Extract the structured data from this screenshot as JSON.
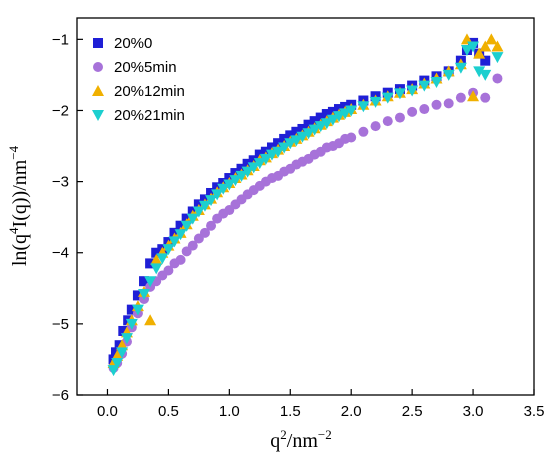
{
  "chart_data": {
    "type": "scatter",
    "xlim": [
      -0.25,
      3.5
    ],
    "ylim": [
      -6,
      -0.7
    ],
    "x_ticks": [
      0.0,
      0.5,
      1.0,
      1.5,
      2.0,
      2.5,
      3.0,
      3.5
    ],
    "x_tick_labels": [
      "0.0",
      "0.5",
      "1.0",
      "1.5",
      "2.0",
      "2.5",
      "3.0",
      "3.5"
    ],
    "y_ticks": [
      -6,
      -5,
      -4,
      -3,
      -2,
      -1
    ],
    "y_tick_labels": [
      "−6",
      "−5",
      "−4",
      "−3",
      "−2",
      "−1"
    ],
    "xlabel": {
      "base": "q",
      "sup1": "2",
      "mid": "/nm",
      "sup2": "−2"
    },
    "ylabel": {
      "pre": "ln(q",
      "sup1": "4",
      "mid": "I(q))/nm",
      "sup2": "−4"
    },
    "legend_position": "top-left",
    "grid": false,
    "series": [
      {
        "name": "20%0",
        "marker": "square",
        "color": "#1f1fd6",
        "points": [
          [
            0.05,
            -5.5
          ],
          [
            0.07,
            -5.4
          ],
          [
            0.1,
            -5.3
          ],
          [
            0.13,
            -5.1
          ],
          [
            0.17,
            -4.95
          ],
          [
            0.2,
            -4.8
          ],
          [
            0.25,
            -4.6
          ],
          [
            0.3,
            -4.4
          ],
          [
            0.35,
            -4.15
          ],
          [
            0.4,
            -4.0
          ],
          [
            0.45,
            -3.95
          ],
          [
            0.5,
            -3.85
          ],
          [
            0.55,
            -3.72
          ],
          [
            0.6,
            -3.62
          ],
          [
            0.65,
            -3.52
          ],
          [
            0.7,
            -3.42
          ],
          [
            0.75,
            -3.32
          ],
          [
            0.8,
            -3.25
          ],
          [
            0.85,
            -3.16
          ],
          [
            0.9,
            -3.08
          ],
          [
            0.95,
            -3.02
          ],
          [
            1.0,
            -2.95
          ],
          [
            1.05,
            -2.88
          ],
          [
            1.1,
            -2.82
          ],
          [
            1.15,
            -2.75
          ],
          [
            1.2,
            -2.7
          ],
          [
            1.25,
            -2.62
          ],
          [
            1.3,
            -2.58
          ],
          [
            1.35,
            -2.52
          ],
          [
            1.4,
            -2.46
          ],
          [
            1.45,
            -2.4
          ],
          [
            1.5,
            -2.35
          ],
          [
            1.55,
            -2.3
          ],
          [
            1.6,
            -2.26
          ],
          [
            1.65,
            -2.2
          ],
          [
            1.7,
            -2.15
          ],
          [
            1.75,
            -2.1
          ],
          [
            1.8,
            -2.05
          ],
          [
            1.85,
            -2.02
          ],
          [
            1.9,
            -1.98
          ],
          [
            1.95,
            -1.95
          ],
          [
            2.0,
            -1.92
          ],
          [
            2.1,
            -1.86
          ],
          [
            2.2,
            -1.8
          ],
          [
            2.3,
            -1.75
          ],
          [
            2.4,
            -1.7
          ],
          [
            2.5,
            -1.65
          ],
          [
            2.6,
            -1.58
          ],
          [
            2.7,
            -1.52
          ],
          [
            2.8,
            -1.45
          ],
          [
            2.9,
            -1.3
          ],
          [
            2.95,
            -1.15
          ],
          [
            3.0,
            -1.05
          ],
          [
            3.05,
            -1.2
          ],
          [
            3.1,
            -1.3
          ]
        ]
      },
      {
        "name": "20%5min",
        "marker": "circle",
        "color": "#a772d9",
        "points": [
          [
            0.05,
            -5.62
          ],
          [
            0.08,
            -5.55
          ],
          [
            0.12,
            -5.42
          ],
          [
            0.16,
            -5.25
          ],
          [
            0.2,
            -5.05
          ],
          [
            0.25,
            -4.85
          ],
          [
            0.3,
            -4.65
          ],
          [
            0.35,
            -4.48
          ],
          [
            0.4,
            -4.4
          ],
          [
            0.45,
            -4.32
          ],
          [
            0.5,
            -4.25
          ],
          [
            0.55,
            -4.15
          ],
          [
            0.6,
            -4.1
          ],
          [
            0.65,
            -3.98
          ],
          [
            0.7,
            -3.9
          ],
          [
            0.75,
            -3.8
          ],
          [
            0.8,
            -3.72
          ],
          [
            0.85,
            -3.62
          ],
          [
            0.9,
            -3.52
          ],
          [
            0.95,
            -3.45
          ],
          [
            1.0,
            -3.4
          ],
          [
            1.05,
            -3.32
          ],
          [
            1.1,
            -3.25
          ],
          [
            1.15,
            -3.18
          ],
          [
            1.2,
            -3.12
          ],
          [
            1.25,
            -3.06
          ],
          [
            1.3,
            -3.0
          ],
          [
            1.35,
            -2.95
          ],
          [
            1.4,
            -2.92
          ],
          [
            1.45,
            -2.86
          ],
          [
            1.5,
            -2.82
          ],
          [
            1.55,
            -2.76
          ],
          [
            1.6,
            -2.72
          ],
          [
            1.65,
            -2.68
          ],
          [
            1.7,
            -2.62
          ],
          [
            1.75,
            -2.58
          ],
          [
            1.8,
            -2.52
          ],
          [
            1.85,
            -2.5
          ],
          [
            1.9,
            -2.46
          ],
          [
            1.95,
            -2.4
          ],
          [
            2.0,
            -2.38
          ],
          [
            2.1,
            -2.3
          ],
          [
            2.2,
            -2.22
          ],
          [
            2.3,
            -2.15
          ],
          [
            2.4,
            -2.1
          ],
          [
            2.5,
            -2.02
          ],
          [
            2.6,
            -1.98
          ],
          [
            2.7,
            -1.92
          ],
          [
            2.8,
            -1.9
          ],
          [
            2.9,
            -1.82
          ],
          [
            3.0,
            -1.75
          ],
          [
            3.1,
            -1.82
          ],
          [
            3.2,
            -1.55
          ]
        ]
      },
      {
        "name": "20%12min",
        "marker": "triangle-up",
        "color": "#f0b000",
        "points": [
          [
            0.05,
            -5.55
          ],
          [
            0.08,
            -5.45
          ],
          [
            0.12,
            -5.3
          ],
          [
            0.16,
            -5.12
          ],
          [
            0.2,
            -4.95
          ],
          [
            0.25,
            -4.75
          ],
          [
            0.3,
            -4.55
          ],
          [
            0.35,
            -4.95
          ],
          [
            0.4,
            -4.1
          ],
          [
            0.45,
            -4.0
          ],
          [
            0.5,
            -3.9
          ],
          [
            0.55,
            -3.8
          ],
          [
            0.6,
            -3.72
          ],
          [
            0.65,
            -3.6
          ],
          [
            0.7,
            -3.48
          ],
          [
            0.75,
            -3.4
          ],
          [
            0.8,
            -3.32
          ],
          [
            0.85,
            -3.24
          ],
          [
            0.9,
            -3.15
          ],
          [
            0.95,
            -3.08
          ],
          [
            1.0,
            -3.02
          ],
          [
            1.05,
            -2.95
          ],
          [
            1.1,
            -2.9
          ],
          [
            1.15,
            -2.84
          ],
          [
            1.2,
            -2.78
          ],
          [
            1.25,
            -2.7
          ],
          [
            1.3,
            -2.66
          ],
          [
            1.35,
            -2.6
          ],
          [
            1.4,
            -2.55
          ],
          [
            1.45,
            -2.5
          ],
          [
            1.5,
            -2.44
          ],
          [
            1.55,
            -2.4
          ],
          [
            1.6,
            -2.35
          ],
          [
            1.65,
            -2.3
          ],
          [
            1.7,
            -2.25
          ],
          [
            1.75,
            -2.2
          ],
          [
            1.8,
            -2.15
          ],
          [
            1.85,
            -2.1
          ],
          [
            1.9,
            -2.06
          ],
          [
            1.95,
            -2.02
          ],
          [
            2.0,
            -1.98
          ],
          [
            2.1,
            -1.92
          ],
          [
            2.2,
            -1.86
          ],
          [
            2.3,
            -1.8
          ],
          [
            2.4,
            -1.75
          ],
          [
            2.5,
            -1.7
          ],
          [
            2.6,
            -1.62
          ],
          [
            2.7,
            -1.55
          ],
          [
            2.8,
            -1.45
          ],
          [
            2.9,
            -1.35
          ],
          [
            2.95,
            -1.0
          ],
          [
            3.0,
            -1.8
          ],
          [
            3.05,
            -1.2
          ],
          [
            3.1,
            -1.1
          ],
          [
            3.15,
            -1.0
          ],
          [
            3.2,
            -1.1
          ]
        ]
      },
      {
        "name": "20%21min",
        "marker": "triangle-down",
        "color": "#1ccfcf",
        "points": [
          [
            0.05,
            -5.65
          ],
          [
            0.08,
            -5.55
          ],
          [
            0.12,
            -5.4
          ],
          [
            0.16,
            -5.2
          ],
          [
            0.2,
            -5.0
          ],
          [
            0.25,
            -4.8
          ],
          [
            0.3,
            -4.58
          ],
          [
            0.35,
            -4.4
          ],
          [
            0.4,
            -4.22
          ],
          [
            0.45,
            -4.08
          ],
          [
            0.5,
            -3.95
          ],
          [
            0.55,
            -3.84
          ],
          [
            0.6,
            -3.74
          ],
          [
            0.65,
            -3.62
          ],
          [
            0.7,
            -3.52
          ],
          [
            0.75,
            -3.42
          ],
          [
            0.8,
            -3.34
          ],
          [
            0.85,
            -3.26
          ],
          [
            0.9,
            -3.18
          ],
          [
            0.95,
            -3.1
          ],
          [
            1.0,
            -3.04
          ],
          [
            1.05,
            -2.98
          ],
          [
            1.1,
            -2.92
          ],
          [
            1.15,
            -2.86
          ],
          [
            1.2,
            -2.8
          ],
          [
            1.25,
            -2.74
          ],
          [
            1.3,
            -2.68
          ],
          [
            1.35,
            -2.62
          ],
          [
            1.4,
            -2.58
          ],
          [
            1.45,
            -2.52
          ],
          [
            1.5,
            -2.46
          ],
          [
            1.55,
            -2.42
          ],
          [
            1.6,
            -2.37
          ],
          [
            1.65,
            -2.32
          ],
          [
            1.7,
            -2.27
          ],
          [
            1.75,
            -2.22
          ],
          [
            1.8,
            -2.18
          ],
          [
            1.85,
            -2.13
          ],
          [
            1.9,
            -2.08
          ],
          [
            1.95,
            -2.04
          ],
          [
            2.0,
            -2.0
          ],
          [
            2.1,
            -1.94
          ],
          [
            2.2,
            -1.88
          ],
          [
            2.3,
            -1.82
          ],
          [
            2.4,
            -1.76
          ],
          [
            2.5,
            -1.72
          ],
          [
            2.6,
            -1.65
          ],
          [
            2.7,
            -1.6
          ],
          [
            2.8,
            -1.5
          ],
          [
            2.9,
            -1.4
          ],
          [
            2.95,
            -1.15
          ],
          [
            3.0,
            -1.1
          ],
          [
            3.05,
            -1.45
          ],
          [
            3.1,
            -1.5
          ],
          [
            3.2,
            -1.25
          ]
        ]
      }
    ]
  }
}
